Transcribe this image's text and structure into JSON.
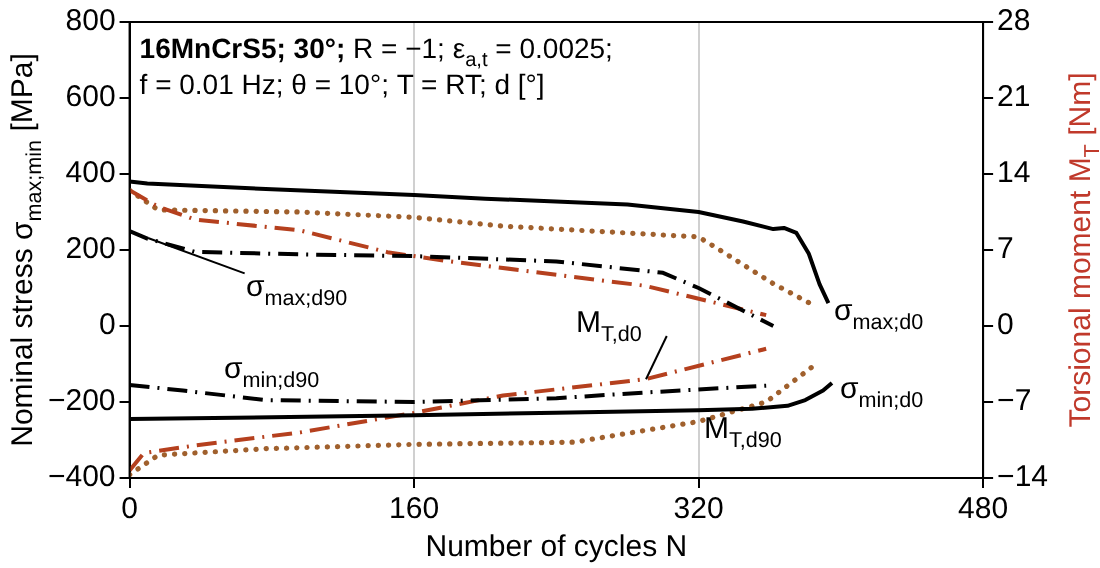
{
  "chart_data": {
    "type": "line",
    "title": "16MnCrS5; 30°; R = −1; ε$_{a,t}$ = 0.0025;",
    "subtitle": "f = 0.01 Hz; θ = 10°; T = RT; d [°]",
    "xlabel": "Number of cycles N",
    "ylabel": "Nominal stress σ$_{max;min}$ [MPa]",
    "y2label": "Torsional moment M$_{T}$ [Nm]",
    "xlim": [
      0,
      480
    ],
    "xticks": [
      0,
      160,
      320,
      480
    ],
    "ylim": [
      -400,
      800
    ],
    "yticks": [
      {
        "value": -400,
        "label": "−400"
      },
      {
        "value": -200,
        "label": "−200"
      },
      0,
      200,
      400,
      600,
      800
    ],
    "y2lim": [
      -14,
      28
    ],
    "y2ticks": [
      {
        "value": -14,
        "label": "−14"
      },
      {
        "value": -7,
        "label": "−7"
      },
      0,
      7,
      14,
      21,
      28
    ],
    "grid": "x",
    "legend": false,
    "marker": "none",
    "series": [
      {
        "name": "σ$_{max;d0}$",
        "color": "#000000",
        "line_style": "solid",
        "x": [
          0,
          10,
          80,
          160,
          200,
          280,
          320,
          345,
          362,
          368,
          375,
          382,
          388,
          393
        ],
        "values": [
          380,
          375,
          360,
          345,
          335,
          320,
          300,
          275,
          255,
          258,
          245,
          190,
          110,
          60
        ]
      },
      {
        "name": "σ$_{min;d0}$",
        "color": "#000000",
        "line_style": "solid",
        "x": [
          0,
          80,
          160,
          240,
          320,
          350,
          370,
          380,
          390,
          395
        ],
        "values": [
          -245,
          -240,
          -235,
          -228,
          -222,
          -218,
          -210,
          -195,
          -170,
          -150
        ]
      },
      {
        "name": "σ$_{max;d90}$",
        "color": "#000000",
        "line_style": "dashdot",
        "x": [
          0,
          10,
          37,
          100,
          160,
          240,
          300,
          320,
          362
        ],
        "values": [
          250,
          230,
          195,
          188,
          184,
          170,
          140,
          100,
          0
        ]
      },
      {
        "name": "σ$_{min;d90}$",
        "color": "#000000",
        "line_style": "dashdot",
        "x": [
          0,
          30,
          77,
          160,
          240,
          290,
          358
        ],
        "values": [
          -155,
          -170,
          -195,
          -200,
          -190,
          -175,
          -157
        ]
      },
      {
        "color": "#b5401e",
        "line_style": "dashdot",
        "axis": "y2",
        "x": [
          0,
          16,
          37,
          96,
          145,
          178,
          290,
          358
        ],
        "values": [
          12.5,
          11,
          9.8,
          8.8,
          6.8,
          6,
          3.7,
          1
        ]
      },
      {
        "name": "M$_{T,d0}$",
        "color": "#b5401e",
        "line_style": "dashdot",
        "axis": "y2",
        "x": [
          0,
          8,
          37,
          96,
          160,
          210,
          290,
          358
        ],
        "values": [
          -13.3,
          -11.7,
          -11,
          -9.8,
          -8,
          -6.4,
          -4.9,
          -2.1
        ]
      },
      {
        "color": "#a0602d",
        "line_style": "dotted",
        "axis": "y2",
        "x": [
          0,
          16,
          96,
          160,
          210,
          320,
          330,
          362,
          386
        ],
        "values": [
          12.5,
          10.7,
          10.5,
          10,
          9.2,
          8.2,
          7.2,
          3.9,
          1.8
        ]
      },
      {
        "name": "M$_{T,d90}$",
        "color": "#a0602d",
        "line_style": "dotted",
        "axis": "y2",
        "x": [
          0,
          16,
          77,
          160,
          250,
          320,
          358,
          386
        ],
        "values": [
          -13.7,
          -11.9,
          -11.3,
          -10.9,
          -10.7,
          -8.8,
          -7,
          -3.5
        ]
      }
    ]
  }
}
